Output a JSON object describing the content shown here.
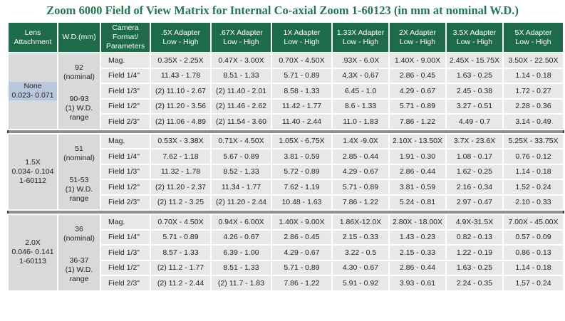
{
  "title": "Zoom 6000 Field of View Matrix for Internal Co-axial Zoom 1-60123 (in mm at nominal W.D.)",
  "table": {
    "header": [
      [
        "Lens",
        "Attachment"
      ],
      [
        "W.D.(mm)"
      ],
      [
        "Camera",
        "Format/",
        "Parameters"
      ],
      [
        ".5X Adapter",
        "Low - High"
      ],
      [
        ".67X Adapter",
        "Low - High"
      ],
      [
        "1X Adapter",
        "Low - High"
      ],
      [
        "1.33X Adapter",
        "Low - High"
      ],
      [
        "2X Adapter",
        "Low - High"
      ],
      [
        "3.5X Adapter",
        "Low - High"
      ],
      [
        "5X Adapter",
        "Low - High"
      ]
    ],
    "groups": [
      {
        "lens": [
          "None",
          "0.023- 0.071"
        ],
        "wd_nominal": [
          "92",
          "(nominal)"
        ],
        "wd_range": [
          "90-93",
          "(1) W.D.",
          "range"
        ],
        "rows": [
          [
            "Mag.",
            "0.35X - 2.25X",
            "0.47X - 3.00X",
            "0.70X - 4.50X",
            ".93X - 6.0X",
            "1.40X - 9.00X",
            "2.45X - 15.75X",
            "3.50X - 22.50X"
          ],
          [
            "Field 1/4\"",
            "11.43 - 1.78",
            "8.51 - 1.33",
            "5.71 - 0.89",
            "4.3X - 0.67",
            "2.86 - 0.45",
            "1.63 - 0.25",
            "1.14 - 0.18"
          ],
          [
            "Field 1/3\"",
            "(2) 11.10 - 2.67",
            "(2) 11.40 - 2.01",
            "8.58 - 1.33",
            "6.45 - 1.0",
            "4.29 - 0.67",
            "2.45 - 0.38",
            "1.72 - 0.27"
          ],
          [
            "Field 1/2\"",
            "(2) 11.20 - 3.56",
            "(2) 11.46 - 2.62",
            "11.42 - 1.77",
            "8.6 - 1.33",
            "5.71 - 0.89",
            "3.27 - 0.51",
            "2.28 - 0.36"
          ],
          [
            "Field 2/3\"",
            "(2) 11.06 - 4.89",
            "(2) 11.54 - 3.60",
            "11.40 - 2.44",
            "11.0 - 1.83",
            "7.86 - 1.22",
            "4.49 - 0.7",
            "3.14 - 0.49"
          ]
        ]
      },
      {
        "lens": [
          "1.5X",
          "0.034- 0.104",
          "1-60112"
        ],
        "wd_nominal": [
          "51",
          "(nominal)"
        ],
        "wd_range": [
          "51-53",
          "(1) W.D.",
          "range"
        ],
        "rows": [
          [
            "Mag.",
            "0.53X - 3.38X",
            "0.71X - 4.50X",
            "1.05X - 6.75X",
            "1.4X -9.0X",
            "2.10X - 13.50X",
            "3.7X - 23.6X",
            "5.25X - 33.75X"
          ],
          [
            "Field 1/4\"",
            "7.62 - 1.18",
            "5.67 - 0.89",
            "3.81 - 0.59",
            "2.85 - 0.44",
            "1.91 - 0.30",
            "1.08 - 0.17",
            "0.76 - 0.12"
          ],
          [
            "Field 1/3\"",
            "11.32 - 1.78",
            "8.52 - 1.33",
            "5.72 - 0.89",
            "4.29 - 0.67",
            "2.86 - 0.44",
            "1.62 - 0.25",
            "1.14 - 0.18"
          ],
          [
            "Field 1/2\"",
            "(2) 11.20 - 2.37",
            "11.34 - 1.77",
            "7.62 - 1.19",
            "5.71 - 0.89",
            "3.81 - 0.59",
            "2.16 - 0.34",
            "1.52 - 0.24"
          ],
          [
            "Field 2/3\"",
            "(2) 11.2 - 3.25",
            "(2) 11.20 - 2.44",
            "10.48 - 1.63",
            "7.86 - 1.22",
            "5.24 - 0.81",
            "2.97 - 0.47",
            "2.10 - 0.33"
          ]
        ]
      },
      {
        "lens": [
          "2.0X",
          "0.046- 0.141",
          "1-60113"
        ],
        "wd_nominal": [
          "36",
          "(nominal)"
        ],
        "wd_range": [
          "36-37",
          "(1) W.D.",
          "range"
        ],
        "rows": [
          [
            "Mag.",
            "0.70X - 4.50X",
            "0.94X - 6.00X",
            "1.40X - 9.00X",
            "1.86X-12.0X",
            "2.80X - 18.00X",
            "4.9X-31.5X",
            "7.00X - 45.00X"
          ],
          [
            "Field 1/4\"",
            "5.71 - 0.89",
            "4.26 - 0.67",
            "2.86 - 0.45",
            "2.15 - 0.33",
            "1.43 - 0.23",
            "0.82 - 0.13",
            "0.57 - 0.09"
          ],
          [
            "Field 1/3\"",
            "8.57 - 1.33",
            "6.39 - 1.00",
            "4.29 - 0.67",
            "3.22 - 0.5",
            "2.15 - 0.33",
            "1.22 - 0.19",
            "0.86 - 0.13"
          ],
          [
            "Field 1/2\"",
            "(2) 11.2 - 1.77",
            "8.51 - 1.33",
            "5.71 - 0.89",
            "4.30 - 0.67",
            "2.86 - 0.44",
            "1.63 - 0.25",
            "1.14 - 0.18"
          ],
          [
            "Field 2/3\"",
            "(2) 11.2 - 2.44",
            "(2) 11.7 - 1.83",
            "7.86 - 1.22",
            "5.91 - 0.92",
            "3.93 - 0.61",
            "2.24 - 0.35",
            "1.57 - 0.24"
          ]
        ]
      }
    ]
  }
}
